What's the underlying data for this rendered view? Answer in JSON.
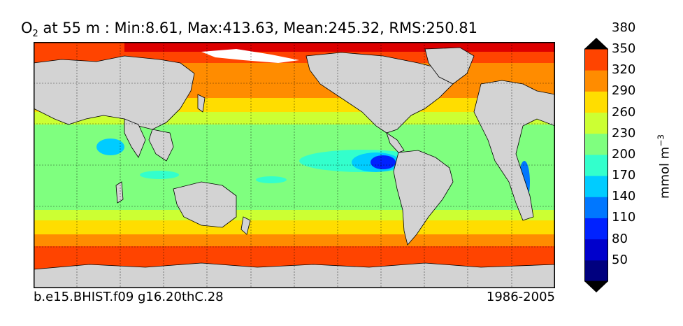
{
  "title": {
    "variable_main": "O",
    "variable_sub": "2",
    "text": " at 55 m : Min:8.61, Max:413.63, Mean:245.32, RMS:250.81"
  },
  "footer": {
    "left": "b.e15.BHIST.f09 g16.20thC.28",
    "right": "1986-2005"
  },
  "colorbar": {
    "unit_main": "mmol m",
    "unit_sup": "−3",
    "ticks": [
      "50",
      "80",
      "110",
      "140",
      "170",
      "200",
      "230",
      "260",
      "290",
      "320",
      "350",
      "380"
    ],
    "colors": [
      "#00007f",
      "#0000cc",
      "#0022ff",
      "#0077ff",
      "#00ccff",
      "#33ffcc",
      "#7fff7f",
      "#ccff33",
      "#ffdd00",
      "#ff8c00",
      "#ff4400",
      "#dd0000",
      "#7f0000"
    ]
  },
  "map": {
    "land_color": "#d3d3d3",
    "missing_color": "#ffffff"
  }
}
